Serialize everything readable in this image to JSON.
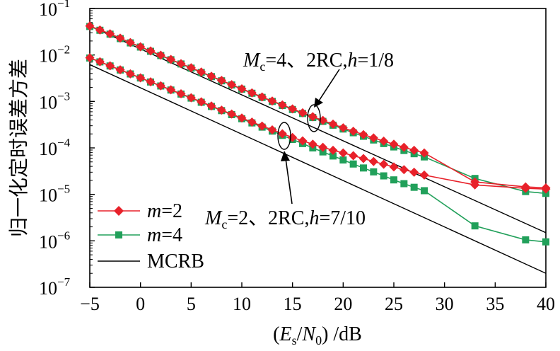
{
  "chart_data": {
    "type": "line",
    "title": "",
    "xlabel": "(Es/N0) /dB",
    "xlabel_parts": {
      "open": "(",
      "E": "E",
      "s": "s",
      "slash": "/",
      "N": "N",
      "zero": "0",
      "close": ")",
      "unit": " /dB"
    },
    "ylabel": "归一化定时误差方差",
    "xlim": [
      -5,
      40
    ],
    "ylim": [
      1e-07,
      0.1
    ],
    "yscale": "log",
    "grid": false,
    "legend_position": "bottom-left",
    "x_ticks": [
      "−5",
      "0",
      "5",
      "10",
      "15",
      "20",
      "25",
      "30",
      "35",
      "40"
    ],
    "y_ticks": [
      {
        "base": "10",
        "exp": "−1"
      },
      {
        "base": "10",
        "exp": "−2"
      },
      {
        "base": "10",
        "exp": "−3"
      },
      {
        "base": "10",
        "exp": "−4"
      },
      {
        "base": "10",
        "exp": "−5"
      },
      {
        "base": "10",
        "exp": "−6"
      },
      {
        "base": "10",
        "exp": "−7"
      }
    ],
    "legend": [
      {
        "label_m": "m",
        "label_rest": "=2",
        "color": "#e8212a",
        "marker": "diamond"
      },
      {
        "label_m": "m",
        "label_rest": "=4",
        "color": "#21a05a",
        "marker": "square"
      },
      {
        "label_m": "",
        "label_rest": "MCRB",
        "color": "#000000",
        "marker": "none"
      }
    ],
    "annotations": [
      {
        "id": "upper",
        "M": "M",
        "sub": "c",
        "rest1": "=4、2RC,",
        "h": "h",
        "rest2": "=1/8"
      },
      {
        "id": "lower",
        "M": "M",
        "sub": "c",
        "rest1": "=2、2RC,",
        "h": "h",
        "rest2": "=7/10"
      }
    ],
    "series": [
      {
        "name": "MCRB",
        "group": "upper",
        "color": "#000000",
        "marker": "none",
        "x": [
          -5,
          40
        ],
        "y": [
          0.042,
          1.5e-06
        ]
      },
      {
        "name": "MCRB",
        "group": "lower",
        "color": "#000000",
        "marker": "none",
        "x": [
          -5,
          40
        ],
        "y": [
          0.0062,
          2e-07
        ]
      },
      {
        "name": "m=4",
        "group": "upper",
        "color": "#21a05a",
        "marker": "square",
        "x": [
          -5,
          -4,
          -3,
          -2,
          -1,
          0,
          1,
          2,
          3,
          4,
          5,
          6,
          7,
          8,
          9,
          10,
          11,
          12,
          13,
          14,
          15,
          16,
          17,
          18,
          19,
          20,
          21,
          22,
          23,
          24,
          25,
          26,
          27,
          28,
          33,
          38,
          40
        ],
        "y": [
          0.041,
          0.034,
          0.028,
          0.0225,
          0.0182,
          0.0148,
          0.012,
          0.0097,
          0.0079,
          0.0064,
          0.0052,
          0.0042,
          0.00342,
          0.00278,
          0.00226,
          0.00184,
          0.0015,
          0.00122,
          0.001,
          0.00082,
          0.00067,
          0.00055,
          0.00045,
          0.000372,
          0.000308,
          0.000255,
          0.000212,
          0.000178,
          0.000148,
          0.000124,
          0.000105,
          8.8e-05,
          7.5e-05,
          6.4e-05,
          2.2e-05,
          1.15e-05,
          1.05e-05
        ]
      },
      {
        "name": "m=2",
        "group": "upper",
        "color": "#e8212a",
        "marker": "diamond",
        "x": [
          -5,
          -4,
          -3,
          -2,
          -1,
          0,
          1,
          2,
          3,
          4,
          5,
          6,
          7,
          8,
          9,
          10,
          11,
          12,
          13,
          14,
          15,
          16,
          17,
          18,
          19,
          20,
          21,
          22,
          23,
          24,
          25,
          26,
          27,
          28,
          33,
          38,
          40
        ],
        "y": [
          0.042,
          0.0345,
          0.0285,
          0.023,
          0.0185,
          0.015,
          0.0122,
          0.0099,
          0.008,
          0.0065,
          0.0053,
          0.0043,
          0.00348,
          0.00283,
          0.0023,
          0.00187,
          0.00153,
          0.00125,
          0.00102,
          0.00084,
          0.00069,
          0.00057,
          0.00047,
          0.00039,
          0.000325,
          0.00027,
          0.000228,
          0.000193,
          0.000164,
          0.00014,
          0.00012,
          0.000103,
          8.9e-05,
          7.8e-05,
          1.85e-05,
          1.45e-05,
          1.38e-05
        ]
      },
      {
        "name": "m=4",
        "group": "lower",
        "color": "#21a05a",
        "marker": "square",
        "x": [
          -5,
          -4,
          -3,
          -2,
          -1,
          0,
          1,
          2,
          3,
          4,
          5,
          6,
          7,
          8,
          9,
          10,
          11,
          12,
          13,
          14,
          15,
          16,
          17,
          18,
          19,
          20,
          21,
          22,
          23,
          24,
          25,
          26,
          27,
          28,
          33,
          38,
          40
        ],
        "y": [
          0.0086,
          0.0071,
          0.0058,
          0.00475,
          0.0039,
          0.0032,
          0.00262,
          0.00215,
          0.00176,
          0.00144,
          0.00118,
          0.00096,
          0.00078,
          0.000635,
          0.00052,
          0.000425,
          0.000345,
          0.00028,
          0.00023,
          0.000186,
          0.000152,
          0.000124,
          0.0001,
          8.2e-05,
          6.7e-05,
          5.5e-05,
          4.5e-05,
          3.7e-05,
          3.05e-05,
          2.5e-05,
          2.05e-05,
          1.7e-05,
          1.42e-05,
          1.2e-05,
          2.1e-06,
          1.05e-06,
          9.5e-07
        ]
      },
      {
        "name": "m=2",
        "group": "lower",
        "color": "#e8212a",
        "marker": "diamond",
        "x": [
          -5,
          -4,
          -3,
          -2,
          -1,
          0,
          1,
          2,
          3,
          4,
          5,
          6,
          7,
          8,
          9,
          10,
          11,
          12,
          13,
          14,
          15,
          16,
          17,
          18,
          19,
          20,
          21,
          22,
          23,
          24,
          25,
          26,
          27,
          28,
          33,
          38,
          40
        ],
        "y": [
          0.0087,
          0.00715,
          0.00585,
          0.0048,
          0.00392,
          0.00322,
          0.00264,
          0.00217,
          0.00178,
          0.00146,
          0.0012,
          0.00098,
          0.0008,
          0.00065,
          0.000535,
          0.00044,
          0.00036,
          0.000295,
          0.000245,
          0.000202,
          0.000168,
          0.000142,
          0.00012,
          0.000103,
          8.9e-05,
          7.8e-05,
          6.8e-05,
          5.9e-05,
          5.1e-05,
          4.45e-05,
          3.9e-05,
          3.4e-05,
          3e-05,
          2.6e-05,
          1.6e-05,
          1.35e-05,
          1.3e-05
        ]
      }
    ]
  }
}
